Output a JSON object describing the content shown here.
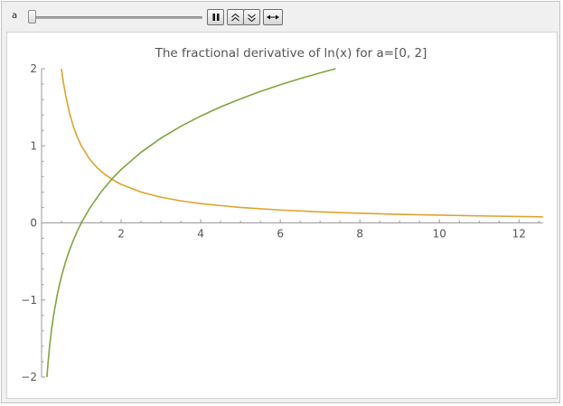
{
  "controls": {
    "parameter_label": "a",
    "slider_value": 0,
    "slider_min": 0,
    "slider_max": 2,
    "buttons": [
      {
        "name": "pause-button",
        "icon": "pause-icon"
      },
      {
        "name": "faster-button",
        "icon": "double-chevron-up-icon"
      },
      {
        "name": "slower-button",
        "icon": "double-chevron-down-icon"
      },
      {
        "name": "direction-button",
        "icon": "double-arrow-horizontal-icon"
      }
    ]
  },
  "chart_data": {
    "type": "line",
    "title": "The fractional derivative of ln(x) for a=[0, 2]",
    "xlabel": "",
    "ylabel": "",
    "xlim": [
      0,
      12.6
    ],
    "ylim": [
      -2,
      2
    ],
    "xticks": [
      2,
      4,
      6,
      8,
      10,
      12
    ],
    "yticks": [
      -2,
      -1,
      0,
      1,
      2
    ],
    "grid": false,
    "series": [
      {
        "color": "#e0a22d",
        "x": [
          0.5,
          0.55,
          0.6,
          0.7,
          0.8,
          0.9,
          1.0,
          1.2,
          1.4,
          1.6,
          1.8,
          2.0,
          2.5,
          3.0,
          3.5,
          4.0,
          5.0,
          6.0,
          7.0,
          8.0,
          9.0,
          10.0,
          11.0,
          12.0,
          12.6
        ],
        "y": [
          2.0,
          1.818,
          1.667,
          1.429,
          1.25,
          1.111,
          1.0,
          0.833,
          0.714,
          0.625,
          0.556,
          0.5,
          0.4,
          0.333,
          0.286,
          0.25,
          0.2,
          0.167,
          0.143,
          0.125,
          0.111,
          0.1,
          0.091,
          0.083,
          0.079
        ]
      },
      {
        "color": "#7fa43e",
        "x": [
          0.135,
          0.16,
          0.2,
          0.25,
          0.3,
          0.4,
          0.5,
          0.6,
          0.7,
          0.8,
          0.9,
          1.0,
          1.2,
          1.5,
          1.8,
          2.0,
          2.5,
          3.0,
          3.5,
          4.0,
          4.5,
          5.0,
          5.5,
          6.0,
          6.5,
          7.0,
          7.389
        ],
        "y": [
          -2.0,
          -1.833,
          -1.609,
          -1.386,
          -1.204,
          -0.916,
          -0.693,
          -0.511,
          -0.357,
          -0.223,
          -0.105,
          0.0,
          0.182,
          0.405,
          0.588,
          0.693,
          0.916,
          1.099,
          1.253,
          1.386,
          1.504,
          1.609,
          1.705,
          1.792,
          1.872,
          1.946,
          2.0
        ]
      }
    ]
  }
}
